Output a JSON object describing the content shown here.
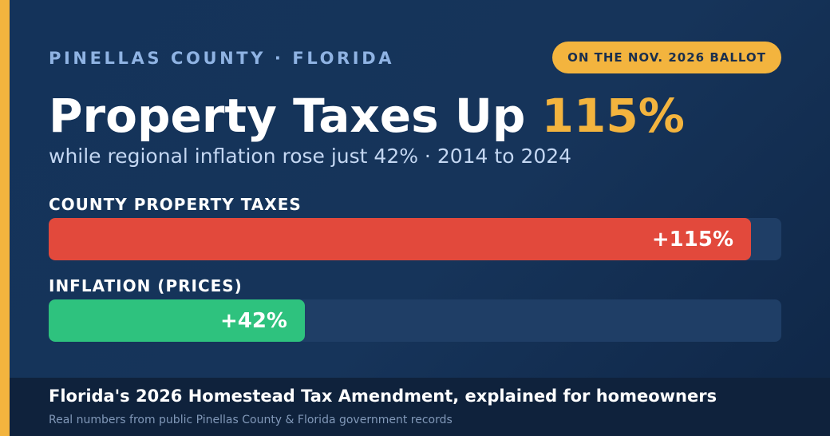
{
  "header": {
    "region": "PINELLAS COUNTY · FLORIDA",
    "badge": "ON THE NOV. 2026 BALLOT",
    "headline_prefix": "Property Taxes Up ",
    "headline_highlight": "115%",
    "subtitle": "while regional inflation rose just 42% · 2014 to 2024"
  },
  "chart_data": {
    "type": "bar",
    "orientation": "horizontal",
    "categories": [
      "COUNTY PROPERTY TAXES",
      "INFLATION (PRICES)"
    ],
    "values": [
      115,
      42
    ],
    "value_labels": [
      "+115%",
      "+42%"
    ],
    "unit": "%",
    "xlim": [
      0,
      120
    ],
    "title": "",
    "xlabel": "",
    "ylabel": "",
    "grid": false,
    "colors": [
      "#e2493c",
      "#2ec27e"
    ]
  },
  "footer": {
    "title": "Florida's 2026 Homestead Tax Amendment, explained for homeowners",
    "source": "Real numbers from public Pinellas County & Florida government records"
  },
  "colors": {
    "background": "#16345a",
    "accent": "#f3b43e",
    "track": "#1f3e66",
    "footer_background": "#0f223c"
  }
}
